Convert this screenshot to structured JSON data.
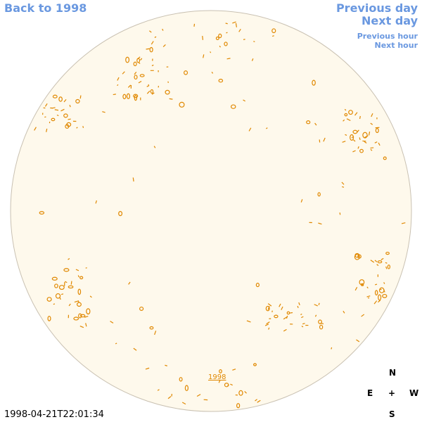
{
  "links": {
    "back": "Back to 1998",
    "previous_day": "Previous day",
    "next_day": "Next day",
    "previous_hour": "Previous hour",
    "next_hour": "Next hour",
    "year": "1998"
  },
  "compass": {
    "north": "N",
    "east": "E",
    "center": "+",
    "west": "W",
    "south": "S"
  },
  "timestamp": "1998-04-21T22:01:34"
}
